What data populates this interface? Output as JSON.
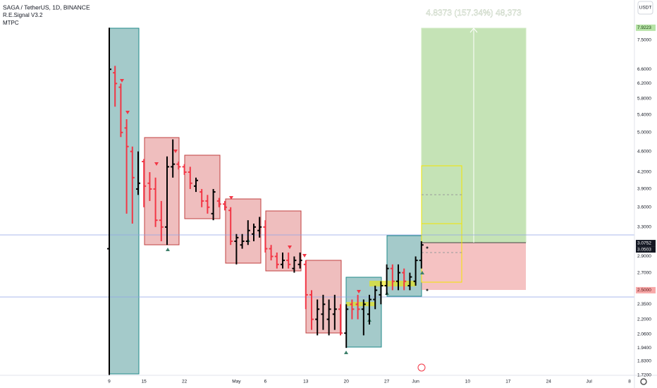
{
  "header": {
    "symbol": "SAGA / TetherUS, 1D, BINANCE",
    "indicators": [
      "R.E.Signal V3.2",
      "MTPC"
    ],
    "currency_button": "USDT"
  },
  "chart_data": {
    "type": "ohlc",
    "log_scale": true,
    "up_color": "#000000",
    "down_color": "#f23645",
    "x": [
      0,
      1,
      2,
      3,
      4,
      5,
      6,
      7,
      8,
      9,
      10,
      11,
      12,
      13,
      14,
      15,
      16,
      17,
      18,
      19,
      20,
      21,
      22,
      23,
      24,
      25,
      26,
      27,
      28,
      29,
      30,
      31,
      32,
      33,
      34,
      35,
      36,
      37,
      38,
      39,
      40,
      41,
      42,
      43,
      44,
      45,
      46,
      47,
      48,
      49,
      50,
      51,
      52,
      53,
      54
    ],
    "open": [
      3.0,
      6.5,
      6.1,
      5.1,
      4.6,
      3.9,
      4.4,
      4.0,
      3.9,
      3.4,
      3.3,
      4.3,
      4.35,
      4.3,
      4.2,
      3.95,
      3.85,
      3.7,
      3.5,
      3.7,
      3.65,
      3.55,
      3.1,
      3.05,
      3.1,
      3.2,
      3.25,
      3.3,
      3.0,
      2.9,
      2.8,
      2.85,
      2.75,
      2.8,
      2.8,
      2.45,
      2.2,
      2.25,
      2.2,
      2.25,
      2.3,
      2.07,
      2.35,
      2.35,
      2.3,
      2.25,
      2.4,
      2.45,
      2.55,
      2.75,
      2.6,
      2.7,
      2.55,
      2.6,
      2.85
    ],
    "high": [
      7.9223,
      6.7,
      6.2,
      5.3,
      4.7,
      4.6,
      4.45,
      4.2,
      4.1,
      3.7,
      4.5,
      4.85,
      4.4,
      4.35,
      4.3,
      4.1,
      3.9,
      3.8,
      3.9,
      3.75,
      3.7,
      3.6,
      3.2,
      3.2,
      3.4,
      3.35,
      3.45,
      3.4,
      3.05,
      2.95,
      2.95,
      2.95,
      2.9,
      2.95,
      2.85,
      2.5,
      2.4,
      2.45,
      2.4,
      2.45,
      2.35,
      2.35,
      2.4,
      2.45,
      2.4,
      2.45,
      2.55,
      2.6,
      2.8,
      2.8,
      2.8,
      2.75,
      2.7,
      2.9,
      3.1
    ],
    "low": [
      1.72,
      5.6,
      4.9,
      3.5,
      3.35,
      3.8,
      3.6,
      3.7,
      3.3,
      3.1,
      3.05,
      4.1,
      4.25,
      4.15,
      3.9,
      3.85,
      3.6,
      3.5,
      3.4,
      3.6,
      3.55,
      3.05,
      2.8,
      3.0,
      3.05,
      3.1,
      3.15,
      2.95,
      2.85,
      2.75,
      2.75,
      2.75,
      2.7,
      2.75,
      2.3,
      2.1,
      2.05,
      2.1,
      2.05,
      2.1,
      2.05,
      1.94,
      2.2,
      2.2,
      2.05,
      2.15,
      2.3,
      2.35,
      2.45,
      2.5,
      2.5,
      2.5,
      2.5,
      2.55,
      2.75
    ],
    "close": [
      6.6,
      6.2,
      5.0,
      4.7,
      4.1,
      4.0,
      3.95,
      3.9,
      3.4,
      3.3,
      4.3,
      4.35,
      4.3,
      4.2,
      4.0,
      4.05,
      3.7,
      3.6,
      3.85,
      3.65,
      3.6,
      3.1,
      3.15,
      3.1,
      3.25,
      3.3,
      3.3,
      3.0,
      2.9,
      2.8,
      2.85,
      2.8,
      2.85,
      2.85,
      2.45,
      2.2,
      2.3,
      2.35,
      2.3,
      2.3,
      2.07,
      2.3,
      2.3,
      2.3,
      2.35,
      2.4,
      2.5,
      2.55,
      2.75,
      2.6,
      2.7,
      2.6,
      2.65,
      2.85,
      3.05
    ],
    "xlim": [
      -18.9,
      90.85
    ],
    "xticks": [
      {
        "value": 0,
        "label": "9"
      },
      {
        "value": 6,
        "label": "15"
      },
      {
        "value": 13,
        "label": "22"
      },
      {
        "value": 22,
        "label": "May"
      },
      {
        "value": 27,
        "label": "6"
      },
      {
        "value": 34,
        "label": "13"
      },
      {
        "value": 41,
        "label": "20"
      },
      {
        "value": 48,
        "label": "27"
      },
      {
        "value": 53,
        "label": "Jun"
      },
      {
        "value": 62,
        "label": "10"
      },
      {
        "value": 69,
        "label": "17"
      },
      {
        "value": 76,
        "label": "24"
      },
      {
        "value": 83,
        "label": "Jul"
      },
      {
        "value": 90,
        "label": "8"
      }
    ],
    "ylim": [
      1.72,
      8.949
    ],
    "yticks": [
      {
        "value": 7.5,
        "label": "7.5000"
      },
      {
        "value": 6.6,
        "label": "6.6000"
      },
      {
        "value": 6.2,
        "label": "6.2000"
      },
      {
        "value": 5.8,
        "label": "5.8000"
      },
      {
        "value": 5.4,
        "label": "5.4000"
      },
      {
        "value": 5.0,
        "label": "5.0000"
      },
      {
        "value": 4.6,
        "label": "4.6000"
      },
      {
        "value": 4.2,
        "label": "4.2000"
      },
      {
        "value": 3.9,
        "label": "3.9000"
      },
      {
        "value": 3.6,
        "label": "3.6000"
      },
      {
        "value": 3.3,
        "label": "3.3000"
      },
      {
        "value": 2.9,
        "label": "2.9000"
      },
      {
        "value": 2.7,
        "label": "2.7000"
      },
      {
        "value": 2.35,
        "label": "2.3500"
      },
      {
        "value": 2.2,
        "label": "2.2000"
      },
      {
        "value": 2.06,
        "label": "2.0600"
      },
      {
        "value": 1.94,
        "label": "1.9400"
      },
      {
        "value": 1.83,
        "label": "1.8300"
      },
      {
        "value": 1.72,
        "label": "1.7200"
      }
    ],
    "price_tags": [
      {
        "value": 7.9223,
        "label": "7.9223",
        "color": "#b6e3a6",
        "text_color": "#1a4010"
      },
      {
        "value": 3.0752,
        "label": "3.0752",
        "color": "#131722",
        "text_color": "#ffffff"
      },
      {
        "value": 3.0503,
        "label": "3.0503",
        "color": "#131722",
        "text_color": "#ffffff"
      },
      {
        "value": 2.5,
        "label": "2.5000",
        "color": "#f7a8a8",
        "text_color": "#5a1010"
      }
    ],
    "annotation": "4.8373 (157.34%) 48,373"
  }
}
